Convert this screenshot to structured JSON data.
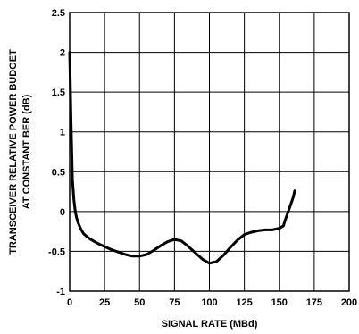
{
  "chart_data": {
    "type": "line",
    "title": "",
    "xlabel": "SIGNAL RATE (MBd)",
    "ylabel_lines": [
      "TRANSCEIVER RELATIVE POWER BUDGET",
      "AT CONSTANT BER (dB)"
    ],
    "xlim": [
      0,
      200
    ],
    "ylim": [
      -1,
      2.5
    ],
    "x_ticks": [
      0,
      25,
      50,
      75,
      100,
      125,
      150,
      175,
      200
    ],
    "y_ticks": [
      -1,
      -0.5,
      0,
      0.5,
      1,
      1.5,
      2,
      2.5
    ],
    "x_tick_labels": [
      "0",
      "25",
      "50",
      "75",
      "100",
      "125",
      "150",
      "175",
      "200"
    ],
    "y_tick_labels": [
      "-1",
      "-0.5",
      "0",
      "0.5",
      "1",
      "1.5",
      "2",
      "2.5"
    ],
    "grid": true,
    "series": [
      {
        "x": [
          0,
          1,
          2,
          3,
          4,
          5,
          6,
          8,
          10,
          12,
          15,
          20,
          25,
          30,
          35,
          40,
          45,
          50,
          55,
          60,
          65,
          70,
          75,
          80,
          85,
          90,
          95,
          100,
          105,
          110,
          115,
          120,
          125,
          130,
          135,
          140,
          145,
          150,
          153,
          154,
          156,
          158,
          160,
          161
        ],
        "y": [
          2.0,
          1.1,
          0.4,
          0.15,
          0.0,
          -0.08,
          -0.14,
          -0.22,
          -0.28,
          -0.31,
          -0.35,
          -0.4,
          -0.44,
          -0.48,
          -0.51,
          -0.54,
          -0.56,
          -0.56,
          -0.54,
          -0.49,
          -0.43,
          -0.38,
          -0.35,
          -0.37,
          -0.44,
          -0.52,
          -0.6,
          -0.65,
          -0.63,
          -0.55,
          -0.45,
          -0.36,
          -0.29,
          -0.26,
          -0.24,
          -0.23,
          -0.23,
          -0.21,
          -0.18,
          -0.12,
          -0.02,
          0.08,
          0.18,
          0.26
        ]
      }
    ]
  }
}
